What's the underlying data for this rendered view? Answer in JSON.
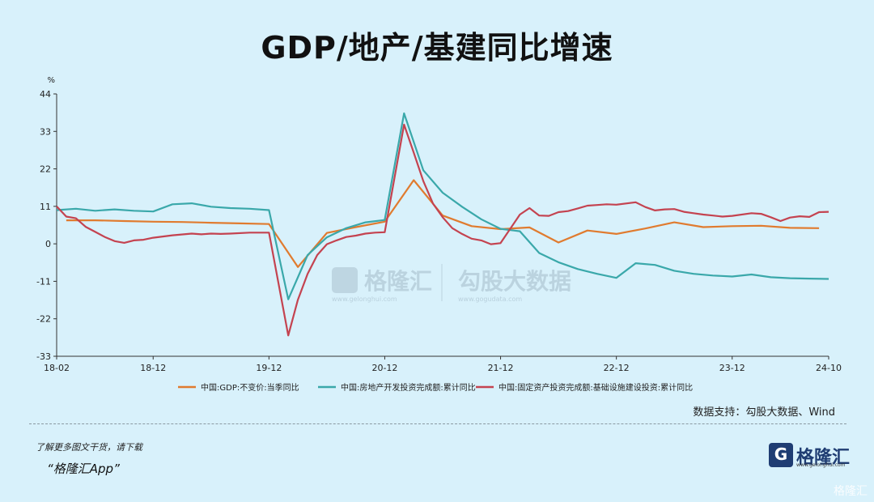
{
  "title": "GDP/地产/基建同比增速",
  "source": "数据支持：勾股大数据、Wind",
  "promo_line1": "了解更多图文干货，请下载",
  "promo_line2": "“格隆汇App”",
  "brand": {
    "name": "格隆汇",
    "logo_letter": "G",
    "url": "www.gelonghui.com"
  },
  "watermark": {
    "left": "格隆汇",
    "left_url": "www.gelonghui.com",
    "right": "勾股大数据",
    "right_url": "www.gogudata.com"
  },
  "corner_mark": "格隆汇",
  "colors": {
    "gdp": "#e07b2f",
    "realestate": "#3aa8aa",
    "infra": "#c44350",
    "background": "#d8f1fb"
  },
  "chart_data": {
    "type": "line",
    "title": "GDP/地产/基建同比增速",
    "ylabel": "%",
    "ylim": [
      -33,
      44
    ],
    "yticks": [
      44,
      33,
      22,
      11,
      0,
      -11,
      -22,
      -33
    ],
    "xlim": [
      "2018-02",
      "2024-10"
    ],
    "xticks": [
      "18-02",
      "18-12",
      "19-12",
      "20-12",
      "21-12",
      "22-12",
      "23-12",
      "24-10"
    ],
    "grid": "none",
    "legend_position": "bottom",
    "series": [
      {
        "name": "中国:GDP:不变价:当季同比",
        "color": "#e07b2f",
        "points": [
          [
            "2018-03",
            6.9
          ],
          [
            "2018-06",
            6.9
          ],
          [
            "2018-09",
            6.7
          ],
          [
            "2018-12",
            6.5
          ],
          [
            "2019-03",
            6.4
          ],
          [
            "2019-06",
            6.2
          ],
          [
            "2019-09",
            6.0
          ],
          [
            "2019-12",
            5.8
          ],
          [
            "2020-03",
            -6.8
          ],
          [
            "2020-06",
            3.2
          ],
          [
            "2020-09",
            4.9
          ],
          [
            "2020-12",
            6.5
          ],
          [
            "2021-03",
            18.7
          ],
          [
            "2021-06",
            8.3
          ],
          [
            "2021-09",
            5.2
          ],
          [
            "2021-12",
            4.3
          ],
          [
            "2022-03",
            4.8
          ],
          [
            "2022-06",
            0.4
          ],
          [
            "2022-09",
            3.9
          ],
          [
            "2022-12",
            2.9
          ],
          [
            "2023-03",
            4.5
          ],
          [
            "2023-06",
            6.3
          ],
          [
            "2023-09",
            4.9
          ],
          [
            "2023-12",
            5.2
          ],
          [
            "2024-03",
            5.3
          ],
          [
            "2024-06",
            4.7
          ],
          [
            "2024-09",
            4.6
          ]
        ]
      },
      {
        "name": "中国:房地产开发投资完成额:累计同比",
        "color": "#3aa8aa",
        "points": [
          [
            "2018-02",
            9.9
          ],
          [
            "2018-04",
            10.3
          ],
          [
            "2018-06",
            9.7
          ],
          [
            "2018-08",
            10.1
          ],
          [
            "2018-10",
            9.7
          ],
          [
            "2018-12",
            9.5
          ],
          [
            "2019-02",
            11.6
          ],
          [
            "2019-04",
            11.9
          ],
          [
            "2019-06",
            10.9
          ],
          [
            "2019-08",
            10.5
          ],
          [
            "2019-10",
            10.3
          ],
          [
            "2019-12",
            9.9
          ],
          [
            "2020-02",
            -16.3
          ],
          [
            "2020-04",
            -3.3
          ],
          [
            "2020-06",
            1.9
          ],
          [
            "2020-08",
            4.6
          ],
          [
            "2020-10",
            6.3
          ],
          [
            "2020-12",
            7.0
          ],
          [
            "2021-02",
            38.3
          ],
          [
            "2021-04",
            21.6
          ],
          [
            "2021-06",
            15.0
          ],
          [
            "2021-08",
            10.9
          ],
          [
            "2021-10",
            7.2
          ],
          [
            "2021-12",
            4.4
          ],
          [
            "2022-02",
            3.7
          ],
          [
            "2022-04",
            -2.7
          ],
          [
            "2022-06",
            -5.4
          ],
          [
            "2022-08",
            -7.4
          ],
          [
            "2022-10",
            -8.8
          ],
          [
            "2022-12",
            -10.0
          ],
          [
            "2023-02",
            -5.7
          ],
          [
            "2023-04",
            -6.2
          ],
          [
            "2023-06",
            -7.9
          ],
          [
            "2023-08",
            -8.8
          ],
          [
            "2023-10",
            -9.3
          ],
          [
            "2023-12",
            -9.6
          ],
          [
            "2024-02",
            -9.0
          ],
          [
            "2024-04",
            -9.8
          ],
          [
            "2024-06",
            -10.1
          ],
          [
            "2024-08",
            -10.2
          ],
          [
            "2024-10",
            -10.3
          ]
        ]
      },
      {
        "name": "中国:固定资产投资完成额:基础设施建设投资:累计同比",
        "color": "#c44350",
        "points": [
          [
            "2018-02",
            11.0
          ],
          [
            "2018-03",
            8.0
          ],
          [
            "2018-04",
            7.5
          ],
          [
            "2018-05",
            5.0
          ],
          [
            "2018-06",
            3.5
          ],
          [
            "2018-07",
            2.0
          ],
          [
            "2018-08",
            0.8
          ],
          [
            "2018-09",
            0.3
          ],
          [
            "2018-10",
            1.0
          ],
          [
            "2018-11",
            1.2
          ],
          [
            "2018-12",
            1.8
          ],
          [
            "2019-02",
            2.5
          ],
          [
            "2019-04",
            3.0
          ],
          [
            "2019-05",
            2.8
          ],
          [
            "2019-06",
            3.0
          ],
          [
            "2019-07",
            2.9
          ],
          [
            "2019-08",
            3.0
          ],
          [
            "2019-10",
            3.3
          ],
          [
            "2019-12",
            3.3
          ],
          [
            "2020-02",
            -26.9
          ],
          [
            "2020-03",
            -16.4
          ],
          [
            "2020-04",
            -8.8
          ],
          [
            "2020-05",
            -3.3
          ],
          [
            "2020-06",
            -0.1
          ],
          [
            "2020-07",
            1.0
          ],
          [
            "2020-08",
            2.0
          ],
          [
            "2020-09",
            2.4
          ],
          [
            "2020-10",
            3.0
          ],
          [
            "2020-11",
            3.3
          ],
          [
            "2020-12",
            3.4
          ],
          [
            "2021-02",
            35.0
          ],
          [
            "2021-03",
            26.8
          ],
          [
            "2021-04",
            18.4
          ],
          [
            "2021-05",
            11.8
          ],
          [
            "2021-06",
            7.8
          ],
          [
            "2021-07",
            4.6
          ],
          [
            "2021-08",
            2.9
          ],
          [
            "2021-09",
            1.5
          ],
          [
            "2021-10",
            1.0
          ],
          [
            "2021-11",
            -0.1
          ],
          [
            "2021-12",
            0.2
          ],
          [
            "2022-02",
            8.6
          ],
          [
            "2022-03",
            10.5
          ],
          [
            "2022-04",
            8.3
          ],
          [
            "2022-05",
            8.2
          ],
          [
            "2022-06",
            9.3
          ],
          [
            "2022-07",
            9.6
          ],
          [
            "2022-08",
            10.4
          ],
          [
            "2022-09",
            11.2
          ],
          [
            "2022-10",
            11.4
          ],
          [
            "2022-11",
            11.6
          ],
          [
            "2022-12",
            11.5
          ],
          [
            "2023-02",
            12.2
          ],
          [
            "2023-03",
            10.8
          ],
          [
            "2023-04",
            9.8
          ],
          [
            "2023-05",
            10.1
          ],
          [
            "2023-06",
            10.2
          ],
          [
            "2023-07",
            9.4
          ],
          [
            "2023-08",
            9.0
          ],
          [
            "2023-09",
            8.6
          ],
          [
            "2023-10",
            8.3
          ],
          [
            "2023-11",
            8.0
          ],
          [
            "2023-12",
            8.2
          ],
          [
            "2024-02",
            9.0
          ],
          [
            "2024-03",
            8.8
          ],
          [
            "2024-04",
            7.8
          ],
          [
            "2024-05",
            6.7
          ],
          [
            "2024-06",
            7.7
          ],
          [
            "2024-07",
            8.1
          ],
          [
            "2024-08",
            7.9
          ],
          [
            "2024-09",
            9.3
          ],
          [
            "2024-10",
            9.4
          ]
        ]
      }
    ]
  }
}
